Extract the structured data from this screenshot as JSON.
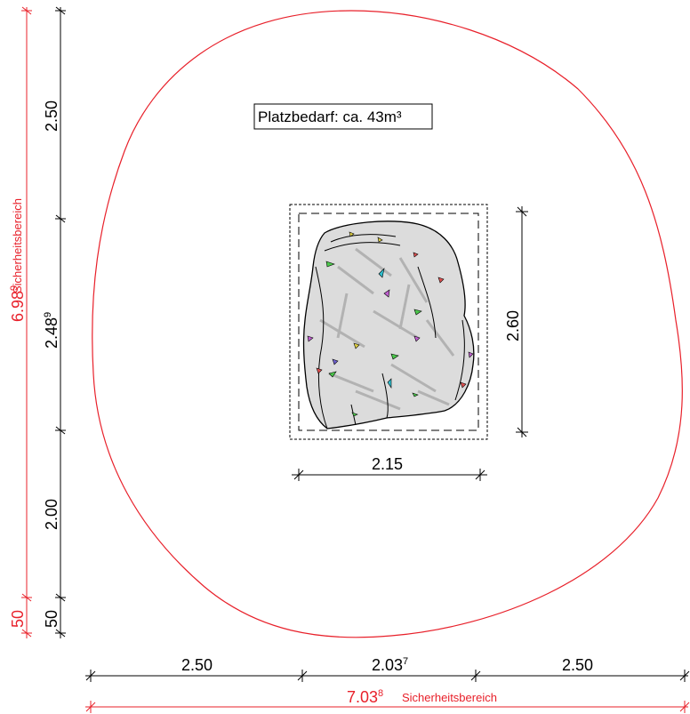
{
  "area_label": "Platzbedarf: ca. 43m³",
  "dimensions": {
    "left_column": {
      "top": "2.50",
      "middle_main": "2.48",
      "middle_sup": "9",
      "bottom": "2.00",
      "end": "50"
    },
    "left_red": {
      "total_main": "6.98",
      "total_sup": "9",
      "total_label": "Sicherheitsbereich",
      "end": "50"
    },
    "object_height": "2.60",
    "object_width": "2.15",
    "bottom_row": {
      "left": "2.50",
      "middle_main": "2.03",
      "middle_sup": "7",
      "right": "2.50"
    },
    "bottom_red": {
      "total_main": "7.03",
      "total_sup": "8",
      "total_label": "Sicherheitsbereich"
    }
  },
  "colors": {
    "safety_zone": "#e8202a",
    "lines": "#000000",
    "boulder_fill": "#dcdcdc"
  }
}
